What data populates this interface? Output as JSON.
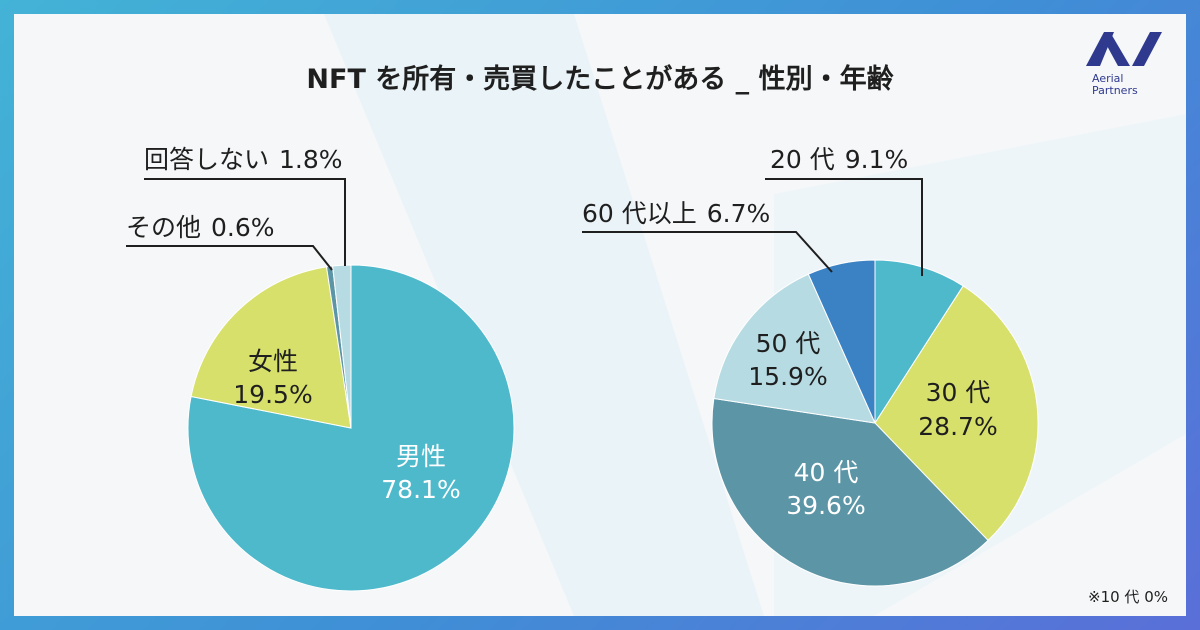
{
  "title": "NFT を所有・売買したことがある _ 性別・年齢",
  "logo": {
    "line1": "Aerial",
    "line2": "Partners",
    "color": "#2f3a8f"
  },
  "footnote": "※10 代 0%",
  "chart_data": [
    {
      "type": "pie",
      "title": "性別",
      "slices": [
        {
          "label": "男性",
          "value": 78.1,
          "value_label": "78.1%",
          "color": "#4fb9cc"
        },
        {
          "label": "女性",
          "value": 19.5,
          "value_label": "19.5%",
          "color": "#d6e06a"
        },
        {
          "label": "その他",
          "value": 0.6,
          "value_label": "0.6%",
          "color": "#5c95a6"
        },
        {
          "label": "回答しない",
          "value": 1.8,
          "value_label": "1.8%",
          "color": "#b7dbe3"
        }
      ]
    },
    {
      "type": "pie",
      "title": "年齢",
      "slices": [
        {
          "label": "20 代",
          "value": 9.1,
          "value_label": "9.1%",
          "color": "#4fb9cc"
        },
        {
          "label": "30 代",
          "value": 28.7,
          "value_label": "28.7%",
          "color": "#d6e06a"
        },
        {
          "label": "40 代",
          "value": 39.6,
          "value_label": "39.6%",
          "color": "#5c95a6"
        },
        {
          "label": "50 代",
          "value": 15.9,
          "value_label": "15.9%",
          "color": "#b7dbe3"
        },
        {
          "label": "60 代以上",
          "value": 6.7,
          "value_label": "6.7%",
          "color": "#3b82c4"
        }
      ]
    }
  ]
}
